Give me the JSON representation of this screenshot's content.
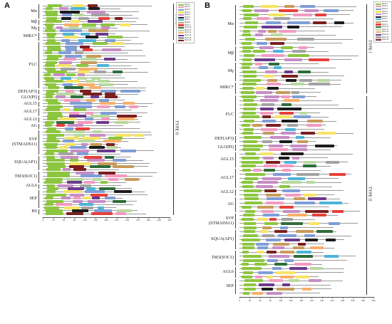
{
  "panels": [
    {
      "id": "A",
      "label": "A",
      "type_labels": [
        "TYPE I",
        "TYPE II"
      ],
      "clades": [
        {
          "name": "Mα",
          "count": 5
        },
        {
          "name": "Mβ",
          "count": 2
        },
        {
          "name": "Mγ",
          "count": 2
        },
        {
          "name": "MIKC*",
          "count": 3
        },
        {
          "name": "FLC",
          "count": 15
        },
        {
          "name": "DEF(AP3)",
          "count": 2
        },
        {
          "name": "GLO(PI)",
          "count": 2
        },
        {
          "name": "AGL15",
          "count": 2
        },
        {
          "name": "AGL17",
          "count": 3
        },
        {
          "name": "AGL12",
          "count": 2
        },
        {
          "name": "AG",
          "count": 2
        },
        {
          "name": "SVP\n(STMADS11)",
          "count": 8
        },
        {
          "name": "SQUA(AP1)",
          "count": 5
        },
        {
          "name": "TM3(SOC1)",
          "count": 4
        },
        {
          "name": "AGL6",
          "count": 2
        },
        {
          "name": "SEP",
          "count": 6
        },
        {
          "name": "BS",
          "count": 2
        }
      ],
      "axis_ticks": [
        "0",
        "30",
        "60",
        "90",
        "120",
        "150",
        "180",
        "210",
        "240",
        "270",
        "300",
        "330",
        "360"
      ]
    },
    {
      "id": "B",
      "label": "B",
      "type_labels": [
        "TYPE I",
        "TYPE II"
      ],
      "clades": [
        {
          "name": "Mα",
          "count": 10
        },
        {
          "name": "Mβ",
          "count": 4
        },
        {
          "name": "Mγ",
          "count": 5
        },
        {
          "name": "MIKC*",
          "count": 3
        },
        {
          "name": "FLC",
          "count": 10
        },
        {
          "name": "DEF(AP3)",
          "count": 2
        },
        {
          "name": "GLO(PI)",
          "count": 2
        },
        {
          "name": "AGL15",
          "count": 4
        },
        {
          "name": "AGL17",
          "count": 5
        },
        {
          "name": "AGL12",
          "count": 2
        },
        {
          "name": "AG",
          "count": 4
        },
        {
          "name": "SVP\n(STMADS11)",
          "count": 4
        },
        {
          "name": "SQUA(AP1)",
          "count": 5
        },
        {
          "name": "TM3(SOC1)",
          "count": 4
        },
        {
          "name": "AGL6",
          "count": 3
        },
        {
          "name": "SEP",
          "count": 4
        }
      ],
      "axis_ticks": [
        "0",
        "30",
        "60",
        "90",
        "120",
        "150",
        "180",
        "210",
        "240",
        "270",
        "300",
        "330",
        "360",
        "390"
      ]
    }
  ],
  "legend_entries": [
    {
      "label": "Motif 1",
      "color": "#8cc63f"
    },
    {
      "label": "Motif 2",
      "color": "#f49ac1"
    },
    {
      "label": "Motif 3",
      "color": "#7f9ed6"
    },
    {
      "label": "Motif 4",
      "color": "#f7e463"
    },
    {
      "label": "Motif 5",
      "color": "#c78dc6"
    },
    {
      "label": "Motif 6",
      "color": "#1c1c1c"
    },
    {
      "label": "Motif 7",
      "color": "#4cb4d8"
    },
    {
      "label": "Motif 8",
      "color": "#c99b5a"
    },
    {
      "label": "Motif 9",
      "color": "#e8403c"
    },
    {
      "label": "Motif 10",
      "color": "#2f6e3a"
    },
    {
      "label": "Motif 11",
      "color": "#b8d9a0"
    },
    {
      "label": "Motif 12",
      "color": "#f7b06a"
    },
    {
      "label": "Motif 13",
      "color": "#6b3a8c"
    },
    {
      "label": "Motif 14",
      "color": "#a3a3a3"
    },
    {
      "label": "Motif 15",
      "color": "#7a1f1f"
    }
  ]
}
